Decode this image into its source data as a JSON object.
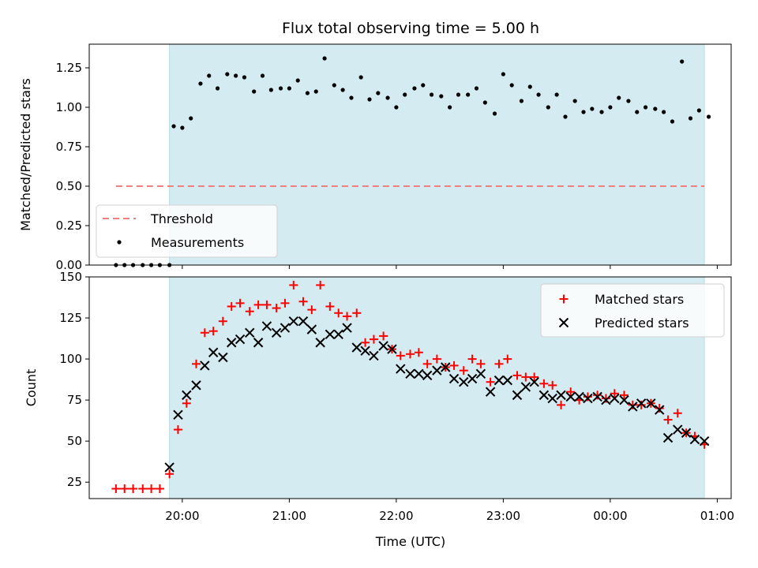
{
  "chart_data": {
    "type": "scatter",
    "title": "Flux total observing time = 5.00 h",
    "xlabel": "Time (UTC)",
    "x_unit": "hours_utc",
    "xlim": [
      19.13,
      25.13
    ],
    "x_ticks": [
      20,
      21,
      22,
      23,
      24,
      25
    ],
    "x_tick_labels": [
      "20:00",
      "21:00",
      "22:00",
      "23:00",
      "00:00",
      "01:00"
    ],
    "observing_window": [
      19.88,
      24.88
    ],
    "colors": {
      "observing_window": "#d4ebf1",
      "threshold": "#f08080",
      "measurements": "#000000",
      "matched": "#ff0000",
      "predicted": "#000000"
    },
    "top": {
      "ylabel": "Matched/Predicted stars",
      "ylim": [
        0,
        1.4
      ],
      "y_ticks": [
        0.0,
        0.25,
        0.5,
        0.75,
        1.0,
        1.25
      ],
      "y_tick_labels": [
        "0.00",
        "0.25",
        "0.50",
        "0.75",
        "1.00",
        "1.25"
      ],
      "legend_position": "lower-left",
      "threshold": {
        "name": "Threshold",
        "value": 0.5,
        "x_range": [
          19.38,
          24.88
        ]
      },
      "measurements": {
        "name": "Measurements",
        "x": [
          19.38,
          19.46,
          19.54,
          19.63,
          19.71,
          19.79,
          19.88,
          19.92,
          20.0,
          20.08,
          20.17,
          20.25,
          20.33,
          20.42,
          20.5,
          20.58,
          20.67,
          20.75,
          20.83,
          20.92,
          21.0,
          21.08,
          21.17,
          21.25,
          21.33,
          21.42,
          21.5,
          21.58,
          21.67,
          21.75,
          21.83,
          21.92,
          22.0,
          22.08,
          22.17,
          22.25,
          22.33,
          22.42,
          22.5,
          22.58,
          22.67,
          22.75,
          22.83,
          22.92,
          23.0,
          23.08,
          23.17,
          23.25,
          23.33,
          23.42,
          23.5,
          23.58,
          23.67,
          23.75,
          23.83,
          23.92,
          24.0,
          24.08,
          24.17,
          24.25,
          24.33,
          24.42,
          24.5,
          24.58,
          24.67,
          24.75,
          24.83,
          24.92
        ],
        "y": [
          0,
          0,
          0,
          0,
          0,
          0,
          0,
          0.88,
          0.87,
          0.93,
          1.15,
          1.2,
          1.12,
          1.21,
          1.2,
          1.19,
          1.1,
          1.2,
          1.11,
          1.12,
          1.12,
          1.17,
          1.09,
          1.1,
          1.31,
          1.14,
          1.11,
          1.06,
          1.19,
          1.05,
          1.09,
          1.06,
          1.0,
          1.08,
          1.12,
          1.14,
          1.08,
          1.07,
          1.0,
          1.08,
          1.08,
          1.12,
          1.03,
          0.96,
          1.21,
          1.14,
          1.04,
          1.13,
          1.08,
          1.0,
          1.08,
          0.94,
          1.04,
          0.97,
          0.99,
          0.97,
          1.0,
          1.06,
          1.04,
          0.97,
          1.0,
          0.99,
          0.97,
          0.91,
          1.29,
          0.93,
          0.98,
          0.94
        ]
      }
    },
    "bottom": {
      "ylabel": "Count",
      "ylim": [
        15,
        150
      ],
      "y_ticks": [
        25,
        50,
        75,
        100,
        125,
        150
      ],
      "y_tick_labels": [
        "25",
        "50",
        "75",
        "100",
        "125",
        "150"
      ],
      "legend_position": "upper-right",
      "matched": {
        "name": "Matched stars",
        "x": [
          19.38,
          19.46,
          19.54,
          19.63,
          19.71,
          19.79,
          19.88,
          19.96,
          20.04,
          20.13,
          20.21,
          20.29,
          20.38,
          20.46,
          20.54,
          20.63,
          20.71,
          20.79,
          20.88,
          20.96,
          21.04,
          21.13,
          21.21,
          21.29,
          21.38,
          21.46,
          21.54,
          21.63,
          21.71,
          21.79,
          21.88,
          21.96,
          22.04,
          22.13,
          22.21,
          22.29,
          22.38,
          22.46,
          22.54,
          22.63,
          22.71,
          22.79,
          22.88,
          22.96,
          23.04,
          23.13,
          23.21,
          23.29,
          23.38,
          23.46,
          23.54,
          23.63,
          23.71,
          23.79,
          23.88,
          23.96,
          24.04,
          24.13,
          24.21,
          24.29,
          24.38,
          24.46,
          24.54,
          24.63,
          24.71,
          24.79,
          24.88
        ],
        "y": [
          21,
          21,
          21,
          21,
          21,
          21,
          30,
          57,
          73,
          97,
          116,
          117,
          123,
          132,
          134,
          129,
          133,
          133,
          131,
          134,
          145,
          135,
          130,
          145,
          132,
          128,
          126,
          128,
          110,
          112,
          114,
          106,
          102,
          103,
          104,
          97,
          100,
          95,
          96,
          93,
          100,
          97,
          86,
          97,
          100,
          90,
          89,
          89,
          85,
          84,
          72,
          80,
          75,
          77,
          78,
          76,
          79,
          78,
          72,
          72,
          73,
          70,
          63,
          67,
          55,
          53,
          48
        ]
      },
      "predicted": {
        "name": "Predicted stars",
        "x": [
          19.88,
          19.96,
          20.04,
          20.13,
          20.21,
          20.29,
          20.38,
          20.46,
          20.54,
          20.63,
          20.71,
          20.79,
          20.88,
          20.96,
          21.04,
          21.13,
          21.21,
          21.29,
          21.38,
          21.46,
          21.54,
          21.63,
          21.71,
          21.79,
          21.88,
          21.96,
          22.04,
          22.13,
          22.21,
          22.29,
          22.38,
          22.46,
          22.54,
          22.63,
          22.71,
          22.79,
          22.88,
          22.96,
          23.04,
          23.13,
          23.21,
          23.29,
          23.38,
          23.46,
          23.54,
          23.63,
          23.71,
          23.79,
          23.88,
          23.96,
          24.04,
          24.13,
          24.21,
          24.29,
          24.38,
          24.46,
          24.54,
          24.63,
          24.71,
          24.79,
          24.88
        ],
        "y": [
          34,
          66,
          78,
          84,
          96,
          104,
          101,
          110,
          112,
          116,
          110,
          120,
          116,
          119,
          123,
          123,
          118,
          110,
          115,
          115,
          119,
          107,
          105,
          102,
          108,
          106,
          94,
          91,
          91,
          90,
          93,
          95,
          88,
          86,
          88,
          91,
          80,
          87,
          87,
          78,
          83,
          86,
          78,
          76,
          78,
          77,
          77,
          76,
          77,
          75,
          76,
          75,
          71,
          73,
          73,
          69,
          52,
          57,
          55,
          51,
          50
        ]
      }
    }
  }
}
